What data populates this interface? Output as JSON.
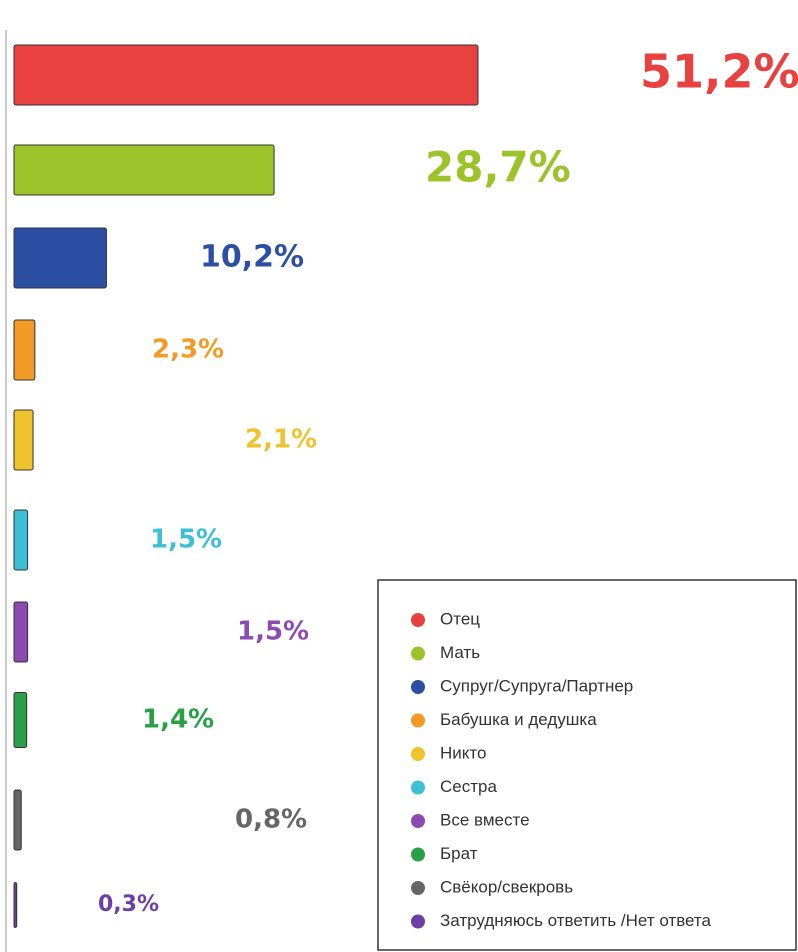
{
  "chart_data": {
    "type": "bar",
    "orientation": "horizontal",
    "categories": [
      "Отец",
      "Мать",
      "Супруг/Супруга/Партнер",
      "Бабушка и дедушка",
      "Никто",
      "Сестра",
      "Все вместе",
      "Брат",
      "Свёкор/свекровь",
      "Затрудняюсь  ответить /Нет ответа"
    ],
    "values": [
      51.2,
      28.7,
      10.2,
      2.3,
      2.1,
      1.5,
      1.5,
      1.4,
      0.8,
      0.3
    ],
    "value_labels": [
      "51,2%",
      "28,7%",
      "10,2%",
      "2,3%",
      "2,1%",
      "1,5%",
      "1,5%",
      "1,4%",
      "0,8%",
      "0,3%"
    ],
    "colors": [
      "#e8413f",
      "#9cc42a",
      "#2d4fa3",
      "#f39a25",
      "#f0c22e",
      "#3dbfd6",
      "#8c4bb0",
      "#27a046",
      "#666666",
      "#6b3fa6"
    ],
    "legend": "bottom-right"
  }
}
